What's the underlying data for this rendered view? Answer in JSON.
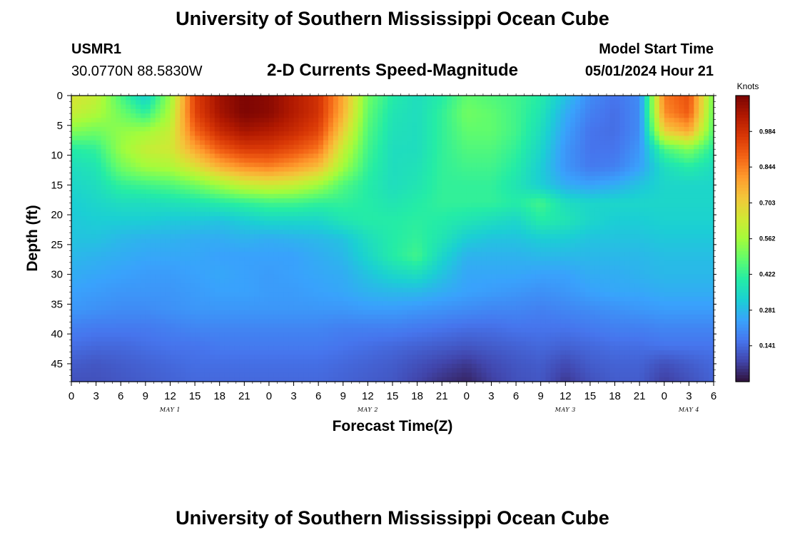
{
  "page": {
    "title": "University of Southern Mississippi Ocean Cube",
    "footer_title": "University of Southern Mississippi Ocean Cube",
    "station": "USMR1",
    "coordinates": "30.0770N  88.5830W",
    "plot_title": "2-D Currents Speed-Magnitude",
    "model_start_label": "Model Start Time",
    "model_start_value": "05/01/2024 Hour 21"
  },
  "chart_data": {
    "type": "heatmap",
    "title": "2-D Currents Speed-Magnitude",
    "xlabel": "Forecast Time(Z)",
    "ylabel": "Depth (ft)",
    "x_range_hours": [
      0,
      78
    ],
    "x_ticks": [
      "0",
      "3",
      "6",
      "9",
      "12",
      "15",
      "18",
      "21",
      "0",
      "3",
      "6",
      "9",
      "12",
      "15",
      "18",
      "21",
      "0",
      "3",
      "6",
      "9",
      "12",
      "15",
      "18",
      "21",
      "0",
      "3",
      "6"
    ],
    "date_labels": [
      {
        "label": "MAY 1",
        "hour": 12
      },
      {
        "label": "MAY 2",
        "hour": 36
      },
      {
        "label": "MAY 3",
        "hour": 60
      },
      {
        "label": "MAY 4",
        "hour": 75
      }
    ],
    "y_range_ft": [
      0,
      48
    ],
    "y_ticks": [
      "0",
      "5",
      "10",
      "15",
      "20",
      "25",
      "30",
      "35",
      "40",
      "45"
    ],
    "y_reversed": true,
    "colorbar": {
      "title": "Knots",
      "min": 0.0,
      "max": 1.125,
      "ticks": [
        "0.141",
        "0.281",
        "0.422",
        "0.562",
        "0.703",
        "0.844",
        "0.984"
      ],
      "colors": [
        "#30123b",
        "#4145ab",
        "#4675ed",
        "#39a2fc",
        "#1bcfd4",
        "#24eca6",
        "#61fc6c",
        "#a4fc3b",
        "#d1e834",
        "#f3c63a",
        "#fe9b2d",
        "#f36315",
        "#d93806",
        "#b11901",
        "#7a0403"
      ]
    },
    "x_hours": [
      0,
      3,
      6,
      9,
      12,
      15,
      18,
      21,
      24,
      27,
      30,
      33,
      36,
      39,
      42,
      45,
      48,
      51,
      54,
      57,
      60,
      63,
      66,
      69,
      72,
      75,
      78
    ],
    "depths_ft": [
      0,
      3,
      6,
      9,
      12,
      15,
      18,
      21,
      24,
      27,
      30,
      33,
      36,
      39,
      42,
      45,
      48
    ],
    "values_knots": [
      [
        0.66,
        0.62,
        0.45,
        0.32,
        0.55,
        0.95,
        1.07,
        1.12,
        1.1,
        1.04,
        0.98,
        0.78,
        0.5,
        0.4,
        0.36,
        0.4,
        0.48,
        0.46,
        0.44,
        0.4,
        0.3,
        0.2,
        0.16,
        0.2,
        0.85,
        0.92,
        0.5
      ],
      [
        0.62,
        0.58,
        0.5,
        0.42,
        0.58,
        0.94,
        1.06,
        1.12,
        1.1,
        1.04,
        0.98,
        0.76,
        0.48,
        0.38,
        0.36,
        0.42,
        0.5,
        0.48,
        0.44,
        0.38,
        0.26,
        0.18,
        0.15,
        0.2,
        0.82,
        0.9,
        0.48
      ],
      [
        0.52,
        0.5,
        0.54,
        0.56,
        0.62,
        0.88,
        1.0,
        1.06,
        1.04,
        1.0,
        0.94,
        0.7,
        0.46,
        0.37,
        0.36,
        0.42,
        0.48,
        0.48,
        0.44,
        0.36,
        0.24,
        0.16,
        0.15,
        0.2,
        0.7,
        0.78,
        0.46
      ],
      [
        0.4,
        0.42,
        0.55,
        0.62,
        0.64,
        0.78,
        0.9,
        0.96,
        0.96,
        0.92,
        0.86,
        0.62,
        0.44,
        0.36,
        0.36,
        0.42,
        0.46,
        0.46,
        0.42,
        0.34,
        0.22,
        0.16,
        0.16,
        0.22,
        0.45,
        0.52,
        0.4
      ],
      [
        0.36,
        0.38,
        0.5,
        0.56,
        0.58,
        0.66,
        0.76,
        0.82,
        0.84,
        0.8,
        0.74,
        0.56,
        0.42,
        0.36,
        0.37,
        0.42,
        0.44,
        0.44,
        0.4,
        0.32,
        0.22,
        0.17,
        0.18,
        0.24,
        0.36,
        0.4,
        0.36
      ],
      [
        0.34,
        0.36,
        0.42,
        0.44,
        0.46,
        0.5,
        0.56,
        0.62,
        0.64,
        0.62,
        0.56,
        0.46,
        0.4,
        0.36,
        0.38,
        0.42,
        0.42,
        0.42,
        0.38,
        0.32,
        0.26,
        0.24,
        0.26,
        0.3,
        0.34,
        0.34,
        0.34
      ],
      [
        0.32,
        0.34,
        0.36,
        0.36,
        0.37,
        0.38,
        0.4,
        0.42,
        0.44,
        0.44,
        0.42,
        0.42,
        0.4,
        0.38,
        0.4,
        0.42,
        0.42,
        0.42,
        0.4,
        0.44,
        0.36,
        0.34,
        0.34,
        0.34,
        0.34,
        0.34,
        0.34
      ],
      [
        0.31,
        0.32,
        0.32,
        0.32,
        0.31,
        0.31,
        0.3,
        0.32,
        0.34,
        0.34,
        0.34,
        0.38,
        0.4,
        0.4,
        0.41,
        0.4,
        0.38,
        0.36,
        0.34,
        0.4,
        0.38,
        0.34,
        0.32,
        0.32,
        0.33,
        0.33,
        0.33
      ],
      [
        0.3,
        0.3,
        0.28,
        0.27,
        0.27,
        0.26,
        0.26,
        0.27,
        0.26,
        0.27,
        0.28,
        0.3,
        0.36,
        0.4,
        0.42,
        0.38,
        0.32,
        0.3,
        0.3,
        0.32,
        0.32,
        0.3,
        0.3,
        0.3,
        0.31,
        0.31,
        0.31
      ],
      [
        0.28,
        0.27,
        0.26,
        0.25,
        0.25,
        0.25,
        0.24,
        0.24,
        0.24,
        0.24,
        0.26,
        0.28,
        0.34,
        0.4,
        0.44,
        0.34,
        0.27,
        0.27,
        0.27,
        0.28,
        0.28,
        0.28,
        0.28,
        0.28,
        0.29,
        0.29,
        0.29
      ],
      [
        0.26,
        0.25,
        0.24,
        0.23,
        0.23,
        0.24,
        0.25,
        0.24,
        0.23,
        0.24,
        0.25,
        0.26,
        0.3,
        0.34,
        0.36,
        0.3,
        0.25,
        0.25,
        0.25,
        0.24,
        0.24,
        0.26,
        0.26,
        0.27,
        0.28,
        0.28,
        0.28
      ],
      [
        0.24,
        0.23,
        0.22,
        0.22,
        0.22,
        0.23,
        0.24,
        0.24,
        0.23,
        0.23,
        0.24,
        0.25,
        0.27,
        0.28,
        0.28,
        0.26,
        0.24,
        0.23,
        0.22,
        0.21,
        0.22,
        0.24,
        0.25,
        0.25,
        0.26,
        0.26,
        0.26
      ],
      [
        0.22,
        0.21,
        0.2,
        0.2,
        0.21,
        0.22,
        0.22,
        0.22,
        0.22,
        0.22,
        0.22,
        0.22,
        0.23,
        0.23,
        0.22,
        0.21,
        0.2,
        0.19,
        0.19,
        0.18,
        0.19,
        0.2,
        0.21,
        0.22,
        0.23,
        0.23,
        0.23
      ],
      [
        0.18,
        0.17,
        0.17,
        0.17,
        0.18,
        0.19,
        0.19,
        0.19,
        0.19,
        0.19,
        0.19,
        0.18,
        0.18,
        0.18,
        0.17,
        0.16,
        0.15,
        0.15,
        0.16,
        0.16,
        0.16,
        0.17,
        0.18,
        0.18,
        0.19,
        0.19,
        0.19
      ],
      [
        0.15,
        0.14,
        0.14,
        0.15,
        0.16,
        0.16,
        0.17,
        0.17,
        0.17,
        0.17,
        0.17,
        0.16,
        0.15,
        0.14,
        0.13,
        0.12,
        0.11,
        0.12,
        0.13,
        0.14,
        0.13,
        0.14,
        0.15,
        0.15,
        0.16,
        0.16,
        0.16
      ],
      [
        0.12,
        0.11,
        0.12,
        0.13,
        0.14,
        0.15,
        0.15,
        0.15,
        0.15,
        0.15,
        0.15,
        0.14,
        0.13,
        0.12,
        0.1,
        0.08,
        0.06,
        0.09,
        0.11,
        0.12,
        0.09,
        0.12,
        0.13,
        0.13,
        0.1,
        0.12,
        0.14
      ],
      [
        0.1,
        0.1,
        0.11,
        0.12,
        0.13,
        0.14,
        0.14,
        0.14,
        0.14,
        0.14,
        0.14,
        0.13,
        0.12,
        0.11,
        0.08,
        0.05,
        0.03,
        0.07,
        0.1,
        0.11,
        0.06,
        0.1,
        0.12,
        0.12,
        0.07,
        0.1,
        0.13
      ]
    ]
  }
}
